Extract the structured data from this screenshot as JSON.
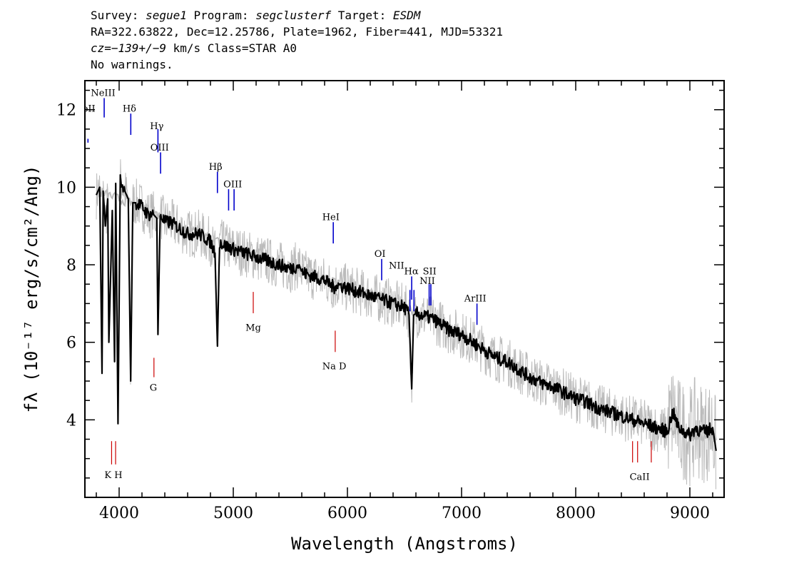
{
  "header": {
    "line1": {
      "survey_label": "Survey: ",
      "survey": "segue1",
      "program_label": " Program: ",
      "program": "segclusterf",
      "target_label": " Target: ",
      "target": "ESDM"
    },
    "line2": "RA=322.63822, Dec=12.25786, Plate=1962, Fiber=441, MJD=53321",
    "line3": {
      "cz_label": "cz=",
      "cz_value": "−139+/−9",
      "cz_rest": " km/s Class=STAR A0"
    },
    "line4": "No warnings."
  },
  "chart_data": {
    "type": "line",
    "xlabel": "Wavelength (Angstroms)",
    "ylabel": "fλ (10⁻¹⁷ erg/s/cm²/Ang)",
    "xlim": [
      3700,
      9300
    ],
    "ylim": [
      2.0,
      12.75
    ],
    "x_ticks": [
      4000,
      5000,
      6000,
      7000,
      8000,
      9000
    ],
    "y_ticks": [
      4,
      6,
      8,
      10,
      12
    ],
    "series": [
      {
        "role": "flux",
        "color": "#000000",
        "x": [
          3800,
          3830,
          3850,
          3860,
          3880,
          3900,
          3910,
          3940,
          3960,
          3970,
          3990,
          4010,
          4050,
          4080,
          4101,
          4120,
          4150,
          4200,
          4250,
          4300,
          4330,
          4340,
          4360,
          4400,
          4450,
          4500,
          4550,
          4600,
          4650,
          4700,
          4750,
          4800,
          4840,
          4861,
          4880,
          4920,
          5000,
          5100,
          5200,
          5300,
          5400,
          5500,
          5577,
          5600,
          5700,
          5800,
          5890,
          5900,
          6000,
          6100,
          6200,
          6300,
          6400,
          6500,
          6540,
          6563,
          6580,
          6600,
          6650,
          6700,
          6750,
          6800,
          6900,
          7000,
          7100,
          7200,
          7300,
          7400,
          7500,
          7600,
          7700,
          7800,
          7900,
          8000,
          8100,
          8200,
          8300,
          8400,
          8500,
          8600,
          8700,
          8800,
          8850,
          8900,
          9000,
          9050,
          9100,
          9150,
          9200,
          9230
        ],
        "y": [
          9.8,
          10.0,
          5.2,
          9.9,
          9.0,
          9.7,
          6.0,
          9.4,
          5.5,
          10.1,
          3.9,
          10.2,
          9.9,
          9.7,
          5.0,
          9.6,
          9.6,
          9.5,
          9.3,
          9.3,
          9.2,
          6.2,
          9.3,
          9.1,
          9.1,
          9.0,
          8.9,
          8.8,
          8.8,
          8.8,
          8.7,
          8.6,
          8.3,
          5.9,
          8.6,
          8.5,
          8.4,
          8.3,
          8.2,
          8.1,
          8.0,
          7.9,
          8.0,
          7.8,
          7.7,
          7.6,
          7.4,
          7.5,
          7.4,
          7.3,
          7.2,
          7.1,
          7.0,
          6.9,
          6.7,
          4.8,
          6.7,
          6.75,
          6.7,
          6.65,
          6.6,
          6.5,
          6.3,
          6.2,
          6.0,
          5.8,
          5.6,
          5.5,
          5.3,
          5.1,
          4.95,
          4.85,
          4.7,
          4.55,
          4.45,
          4.3,
          4.2,
          4.1,
          4.0,
          3.9,
          3.8,
          3.7,
          4.2,
          3.8,
          3.6,
          3.8,
          3.7,
          3.7,
          3.8,
          3.2
        ]
      },
      {
        "role": "model",
        "color": "#bbbbbb",
        "x": [
          3800,
          3900,
          4000,
          4200,
          4400,
          4600,
          4800,
          5000,
          5200,
          5400,
          5600,
          5800,
          6000,
          6200,
          6400,
          6600,
          6800,
          7000,
          7200,
          7400,
          7600,
          7800,
          8000,
          8200,
          8400,
          8600,
          8800,
          9000,
          9230
        ],
        "y": [
          9.9,
          9.8,
          9.7,
          9.5,
          9.2,
          8.9,
          8.7,
          8.45,
          8.25,
          8.05,
          7.85,
          7.65,
          7.45,
          7.25,
          7.05,
          6.75,
          6.5,
          6.25,
          5.85,
          5.55,
          5.15,
          4.85,
          4.55,
          4.3,
          4.1,
          3.9,
          3.75,
          3.6,
          3.55
        ]
      }
    ],
    "emission_lines": [
      {
        "label": "NeII",
        "x": 3727,
        "y_top": 11.25,
        "y_bottom": 11.15
      },
      {
        "label": "NeIII",
        "x": 3869,
        "y_top": 12.3,
        "y_bottom": 11.8
      },
      {
        "label": "Hδ",
        "x": 4102,
        "y_top": 11.9,
        "y_bottom": 11.35
      },
      {
        "label": "Hγ",
        "x": 4340,
        "y_top": 11.5,
        "y_bottom": 10.9
      },
      {
        "label": "OIII",
        "x": 4363,
        "y_top": 10.9,
        "y_bottom": 10.35
      },
      {
        "label": "Hβ",
        "x": 4861,
        "y_top": 10.4,
        "y_bottom": 9.85
      },
      {
        "label": "OIII",
        "x": 4959,
        "y_top": 9.95,
        "y_bottom": 9.4
      },
      {
        "label": "OIII",
        "x": 5007,
        "y_top": 9.95,
        "y_bottom": 9.4
      },
      {
        "label": "HeI",
        "x": 5876,
        "y_top": 9.1,
        "y_bottom": 8.55
      },
      {
        "label": "OI",
        "x": 6300,
        "y_top": 8.15,
        "y_bottom": 7.6
      },
      {
        "label": "NII",
        "x": 6548,
        "y_top": 7.35,
        "y_bottom": 6.8
      },
      {
        "label": "Hα",
        "x": 6563,
        "y_top": 7.7,
        "y_bottom": 7.1
      },
      {
        "label": "NII",
        "x": 6583,
        "y_top": 7.35,
        "y_bottom": 6.8
      },
      {
        "label": "SII",
        "x": 6716,
        "y_top": 7.5,
        "y_bottom": 6.95
      },
      {
        "label": "SII",
        "x": 6731,
        "y_top": 7.5,
        "y_bottom": 6.95
      },
      {
        "label": "ArIII",
        "x": 7135,
        "y_top": 7.0,
        "y_bottom": 6.45
      }
    ],
    "absorption_lines": [
      {
        "label": "G",
        "x": 4305,
        "y_top": 5.6,
        "y_bottom": 5.1
      },
      {
        "label": "Mg",
        "x": 5175,
        "y_top": 7.3,
        "y_bottom": 6.75
      },
      {
        "label": "Na D",
        "x": 5893,
        "y_top": 6.3,
        "y_bottom": 5.75
      },
      {
        "label": "K",
        "x": 3934,
        "y_top": 3.45,
        "y_bottom": 2.85
      },
      {
        "label": "H",
        "x": 3969,
        "y_top": 3.45,
        "y_bottom": 2.85
      },
      {
        "label": "CaII",
        "x": 8498,
        "y_top": 3.45,
        "y_bottom": 2.9
      },
      {
        "label": "CaII",
        "x": 8542,
        "y_top": 3.45,
        "y_bottom": 2.9
      },
      {
        "label": "CaII",
        "x": 8662,
        "y_top": 3.45,
        "y_bottom": 2.9
      }
    ],
    "text_labels": [
      {
        "text": "NeII",
        "x": 3700,
        "y": 11.95,
        "color_role": "emission"
      },
      {
        "text": "NeIII",
        "x": 3860,
        "y": 12.35
      },
      {
        "text": "Hδ",
        "x": 4090,
        "y": 11.95
      },
      {
        "text": "Hγ",
        "x": 4330,
        "y": 11.5
      },
      {
        "text": "OIII",
        "x": 4355,
        "y": 10.95
      },
      {
        "text": "Hβ",
        "x": 4845,
        "y": 10.45
      },
      {
        "text": "OIII",
        "x": 4995,
        "y": 10.0
      },
      {
        "text": "HeI",
        "x": 5855,
        "y": 9.15
      },
      {
        "text": "OI",
        "x": 6285,
        "y": 8.2
      },
      {
        "text": "NII",
        "x": 6430,
        "y": 7.9
      },
      {
        "text": "Hα",
        "x": 6560,
        "y": 7.75
      },
      {
        "text": "SII",
        "x": 6720,
        "y": 7.75
      },
      {
        "text": "NII",
        "x": 6700,
        "y": 7.5
      },
      {
        "text": "ArIII",
        "x": 7120,
        "y": 7.05
      },
      {
        "text": "Mg",
        "x": 5175,
        "y": 6.3
      },
      {
        "text": "Na D",
        "x": 5885,
        "y": 5.3
      },
      {
        "text": "G",
        "x": 4300,
        "y": 4.75
      },
      {
        "text": "K H",
        "x": 3950,
        "y": 2.5
      },
      {
        "text": "CaII",
        "x": 8560,
        "y": 2.45
      }
    ],
    "colors": {
      "emission": "#0000cc",
      "absorption": "#cc0000",
      "flux": "#000000",
      "noise": "#bbbbbb"
    }
  }
}
